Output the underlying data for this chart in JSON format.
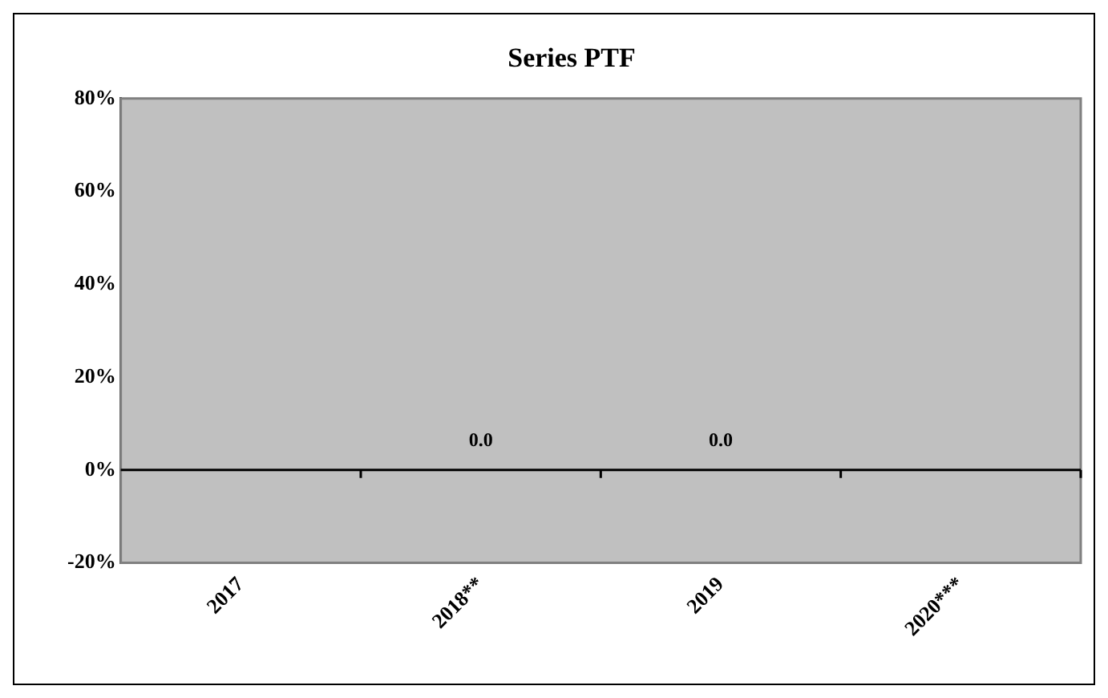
{
  "chart_data": {
    "type": "bar",
    "title": "Series PTF",
    "categories": [
      "2017",
      "2018**",
      "2019",
      "2020***"
    ],
    "values": [
      null,
      0,
      0,
      null
    ],
    "value_labels": [
      null,
      "0.0",
      "0.0",
      null
    ],
    "ylim": [
      -20,
      80
    ],
    "yticks": [
      {
        "value": -20,
        "label": "-20%"
      },
      {
        "value": 0,
        "label": "0%"
      },
      {
        "value": 20,
        "label": "20%"
      },
      {
        "value": 40,
        "label": "40%"
      },
      {
        "value": 60,
        "label": "60%"
      },
      {
        "value": 80,
        "label": "80%"
      }
    ],
    "legend": false
  }
}
